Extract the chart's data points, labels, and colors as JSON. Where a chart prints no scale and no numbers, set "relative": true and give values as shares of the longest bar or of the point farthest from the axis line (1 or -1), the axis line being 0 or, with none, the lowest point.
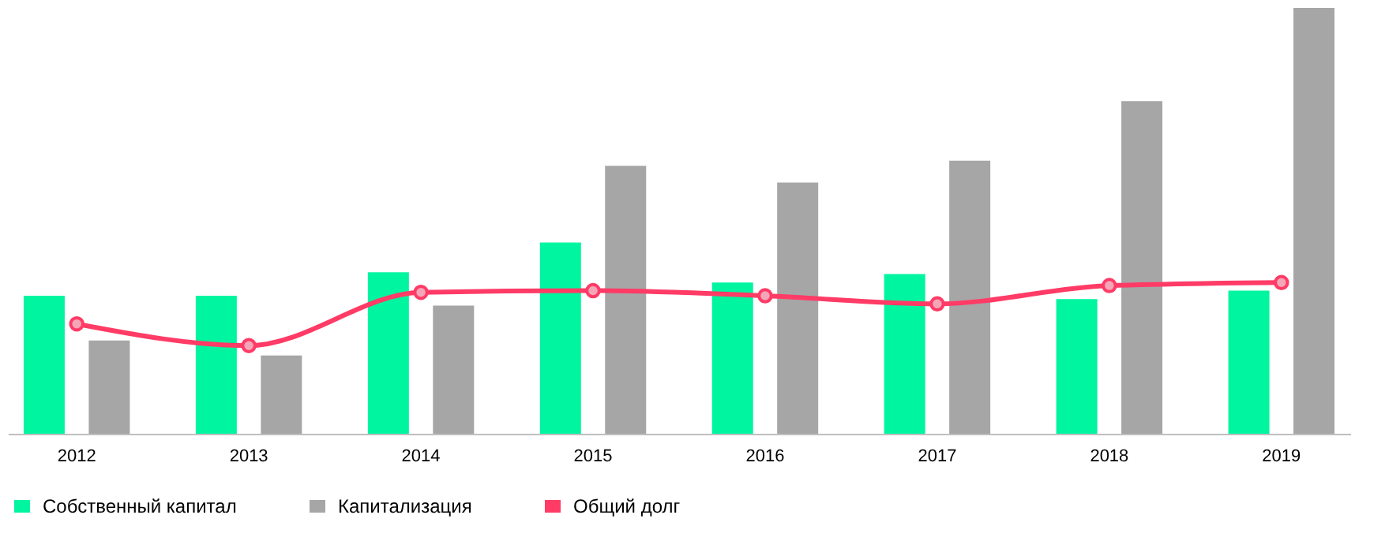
{
  "chart_data": {
    "type": "bar",
    "relative": true,
    "categories": [
      "2012",
      "2013",
      "2014",
      "2015",
      "2016",
      "2017",
      "2018",
      "2019"
    ],
    "series": [
      {
        "name": "Собственный капитал",
        "color": "#00f5a0",
        "values": [
          0.324,
          0.324,
          0.379,
          0.449,
          0.355,
          0.375,
          0.316,
          0.336
        ]
      },
      {
        "name": "Капитализация",
        "color": "#a6a6a6",
        "values": [
          0.219,
          0.184,
          0.301,
          0.629,
          0.59,
          0.641,
          0.781,
          1
        ]
      },
      {
        "name": "Общий долг",
        "type": "line",
        "color": "#ff3b66",
        "marker": "circle",
        "values": [
          0.258,
          0.207,
          0.332,
          0.336,
          0.324,
          0.305,
          0.348,
          0.355
        ]
      }
    ],
    "legend": "bottom",
    "grid": false
  }
}
